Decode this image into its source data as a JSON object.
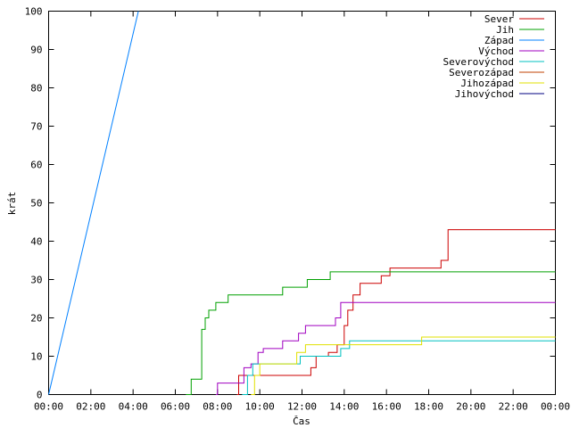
{
  "chart_data": {
    "type": "line",
    "xlabel": "Čas",
    "ylabel": "krát",
    "xlim": [
      "00:00",
      "24:00"
    ],
    "ylim": [
      0,
      100
    ],
    "x_ticks": [
      "00:00",
      "02:00",
      "04:00",
      "06:00",
      "08:00",
      "10:00",
      "12:00",
      "14:00",
      "16:00",
      "18:00",
      "20:00",
      "22:00",
      "00:00"
    ],
    "y_ticks": [
      "0",
      "10",
      "20",
      "30",
      "40",
      "50",
      "60",
      "70",
      "80",
      "90",
      "100"
    ],
    "grid": false,
    "legend_position": "top-right",
    "step": true,
    "series": [
      {
        "name": "Sever",
        "color": "#cc0000",
        "points": [
          [
            "08:55",
            0
          ],
          [
            "09:00",
            5
          ],
          [
            "11:45",
            5
          ],
          [
            "12:25",
            7
          ],
          [
            "12:40",
            10
          ],
          [
            "13:15",
            11
          ],
          [
            "13:40",
            13
          ],
          [
            "14:00",
            18
          ],
          [
            "14:10",
            22
          ],
          [
            "14:25",
            26
          ],
          [
            "14:45",
            29
          ],
          [
            "15:45",
            31
          ],
          [
            "16:10",
            33
          ],
          [
            "18:35",
            35
          ],
          [
            "18:55",
            43
          ],
          [
            "24:00",
            43
          ]
        ]
      },
      {
        "name": "Jih",
        "color": "#00a000",
        "points": [
          [
            "06:30",
            0
          ],
          [
            "06:45",
            4
          ],
          [
            "07:15",
            17
          ],
          [
            "07:25",
            20
          ],
          [
            "07:35",
            22
          ],
          [
            "07:55",
            24
          ],
          [
            "08:30",
            26
          ],
          [
            "11:05",
            28
          ],
          [
            "12:15",
            30
          ],
          [
            "13:20",
            32
          ],
          [
            "24:00",
            32
          ]
        ]
      },
      {
        "name": "Západ",
        "color": "#0080ff",
        "points": [
          [
            "00:00",
            0
          ],
          [
            "04:15",
            100
          ]
        ]
      },
      {
        "name": "Východ",
        "color": "#a000c0",
        "points": [
          [
            "07:55",
            0
          ],
          [
            "08:00",
            3
          ],
          [
            "09:00",
            3
          ],
          [
            "09:15",
            7
          ],
          [
            "09:35",
            8
          ],
          [
            "09:55",
            11
          ],
          [
            "10:10",
            12
          ],
          [
            "11:05",
            14
          ],
          [
            "11:50",
            16
          ],
          [
            "12:10",
            18
          ],
          [
            "13:35",
            20
          ],
          [
            "13:50",
            24
          ],
          [
            "24:00",
            24
          ]
        ]
      },
      {
        "name": "Severovýchod",
        "color": "#00c0c0",
        "points": [
          [
            "09:10",
            0
          ],
          [
            "09:25",
            5
          ],
          [
            "09:40",
            8
          ],
          [
            "10:20",
            8
          ],
          [
            "10:40",
            8
          ],
          [
            "11:30",
            8
          ],
          [
            "11:55",
            10
          ],
          [
            "13:05",
            10
          ],
          [
            "13:50",
            12
          ],
          [
            "14:15",
            14
          ],
          [
            "24:00",
            14
          ]
        ]
      },
      {
        "name": "Severozápad",
        "color": "#c04000",
        "points": []
      },
      {
        "name": "Jihozápad",
        "color": "#e0e000",
        "points": [
          [
            "09:35",
            0
          ],
          [
            "09:45",
            5
          ],
          [
            "10:00",
            8
          ],
          [
            "11:30",
            8
          ],
          [
            "11:45",
            11
          ],
          [
            "12:10",
            13
          ],
          [
            "17:35",
            13
          ],
          [
            "17:40",
            15
          ],
          [
            "24:00",
            15
          ]
        ]
      },
      {
        "name": "Jihovýchod",
        "color": "#000080",
        "points": []
      }
    ]
  }
}
